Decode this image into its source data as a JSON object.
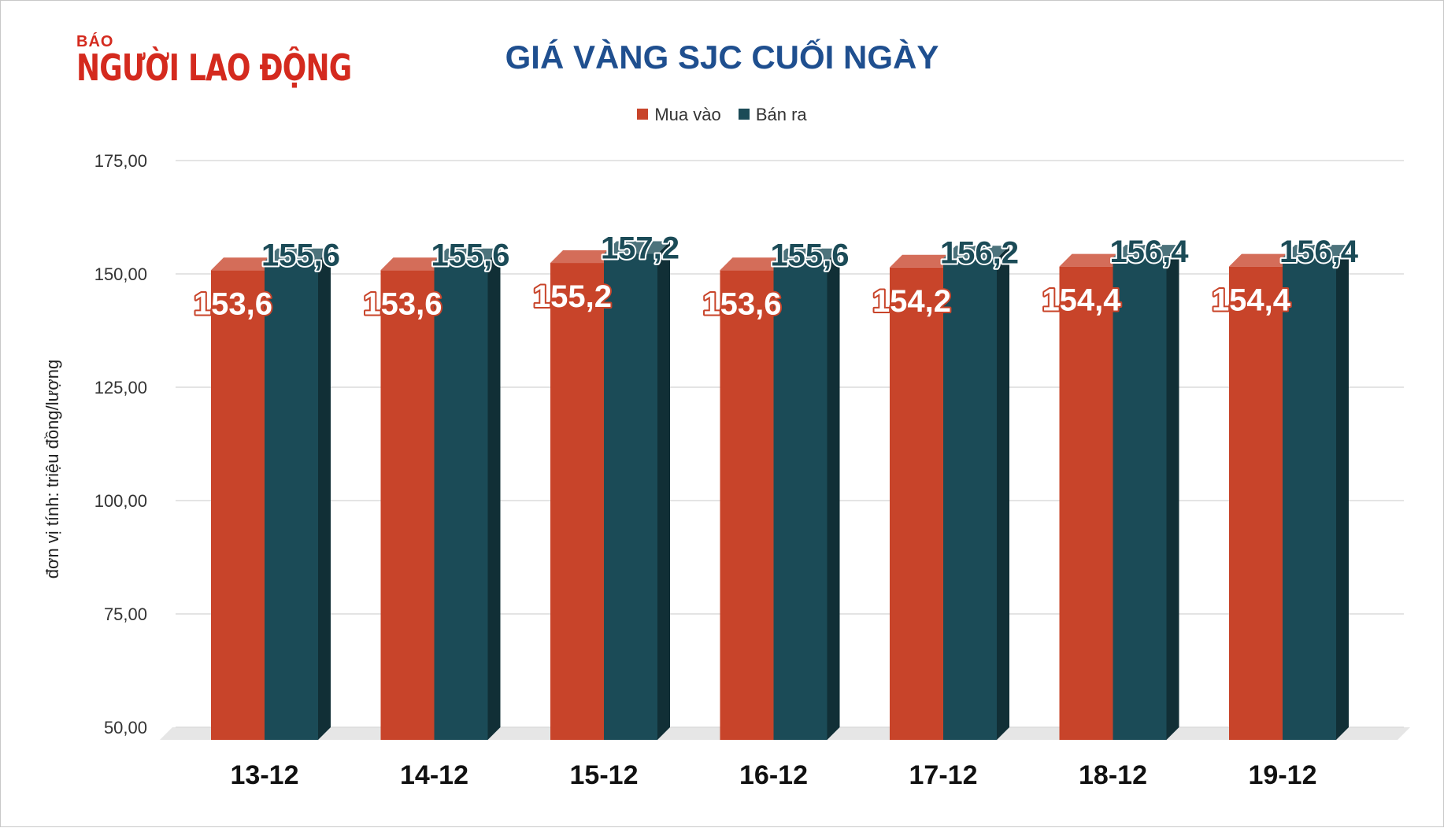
{
  "brand": {
    "small": "BÁO",
    "name": "NGƯỜI LAO ĐỘNG"
  },
  "colors": {
    "buy": "#c8442a",
    "sell": "#1b4b57",
    "title": "#1f4f8f",
    "brand": "#d42a1e"
  },
  "chart_data": {
    "type": "bar",
    "title": "GIÁ VÀNG SJC CUỐI NGÀY",
    "ylabel": "đơn vị tính: triệu đồng/lượng",
    "xlabel": "",
    "categories": [
      "13-12",
      "14-12",
      "15-12",
      "16-12",
      "17-12",
      "18-12",
      "19-12"
    ],
    "series": [
      {
        "name": "Mua vào",
        "color": "#c8442a",
        "values": [
          153.6,
          153.6,
          155.2,
          153.6,
          154.2,
          154.4,
          154.4
        ],
        "labels": [
          "153,6",
          "153,6",
          "155,2",
          "153,6",
          "154,2",
          "154,4",
          "154,4"
        ]
      },
      {
        "name": "Bán ra",
        "color": "#1b4b57",
        "values": [
          155.6,
          155.6,
          157.2,
          155.6,
          156.2,
          156.4,
          156.4
        ],
        "labels": [
          "155,6",
          "155,6",
          "157,2",
          "155,6",
          "156,2",
          "156,4",
          "156,4"
        ]
      }
    ],
    "ylim": [
      50,
      175
    ],
    "yticks": [
      50,
      75,
      100,
      125,
      150,
      175
    ],
    "ytick_labels": [
      "50,00",
      "75,00",
      "100,00",
      "125,00",
      "150,00",
      "175,00"
    ],
    "grid": true,
    "legend_position": "top-center",
    "style": "3d-column"
  }
}
